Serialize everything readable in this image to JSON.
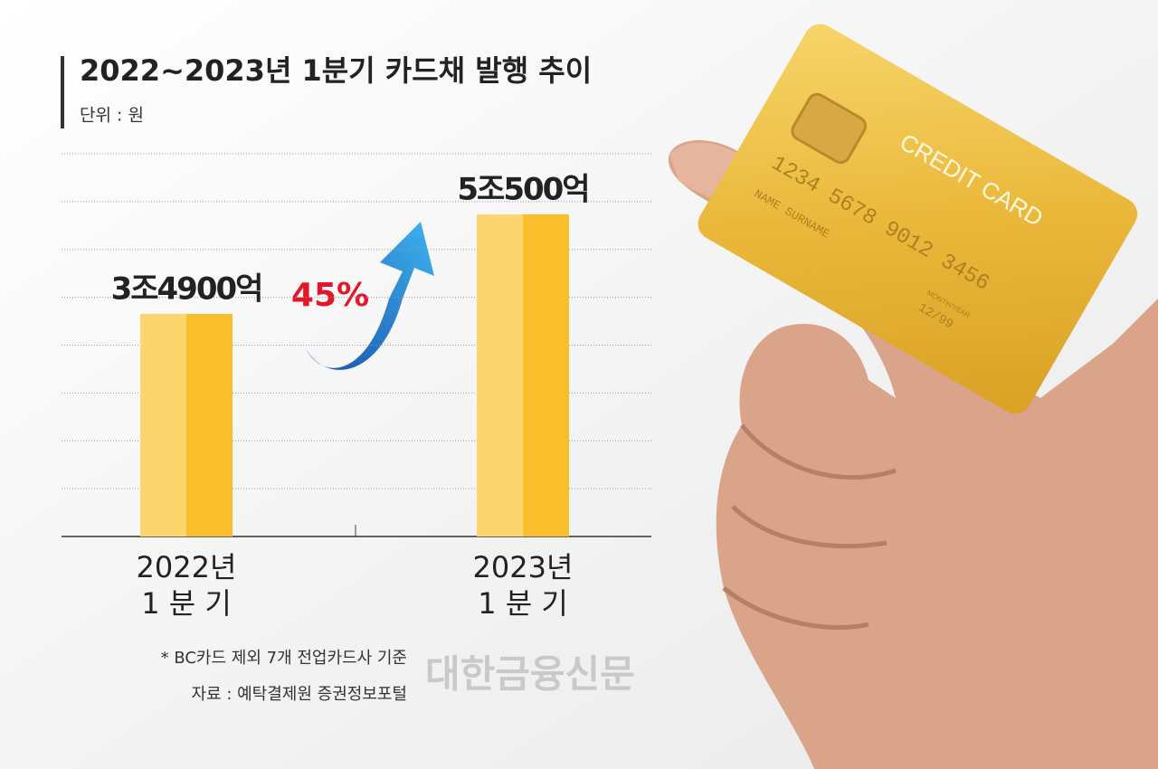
{
  "chart_data": {
    "type": "bar",
    "title": "2022~2023년 1분기 카드채 발행 추이",
    "unit_label": "단위 : 원",
    "categories": [
      "2022년",
      "2023년"
    ],
    "category_sublabels": [
      "1 분 기",
      "1 분 기"
    ],
    "values": [
      3490000000000,
      5050000000000
    ],
    "value_labels": [
      "3조4900억",
      "5조500억"
    ],
    "colors": [
      "#fcd56f",
      "#f9bf2a"
    ],
    "growth_label": "45%",
    "ylim": [
      0,
      6000000000000
    ],
    "yticks": [
      0,
      750000000000,
      1500000000000,
      2250000000000,
      3000000000000,
      3750000000000,
      4500000000000,
      5250000000000,
      6000000000000
    ],
    "grid": true,
    "notes": [
      "* BC카드 제외 7개 전업카드사 기준",
      "자료 : 예탁결제원 증권정보포털"
    ],
    "source_logo": "대한금융신문"
  },
  "photo": {
    "card_brand": "CREDIT CARD",
    "card_number": "1234 5678 9012 3456",
    "card_name": "NAME SURNAME",
    "card_expiry_caption": "MONTH/YEAR",
    "card_expiry": "12/99"
  }
}
